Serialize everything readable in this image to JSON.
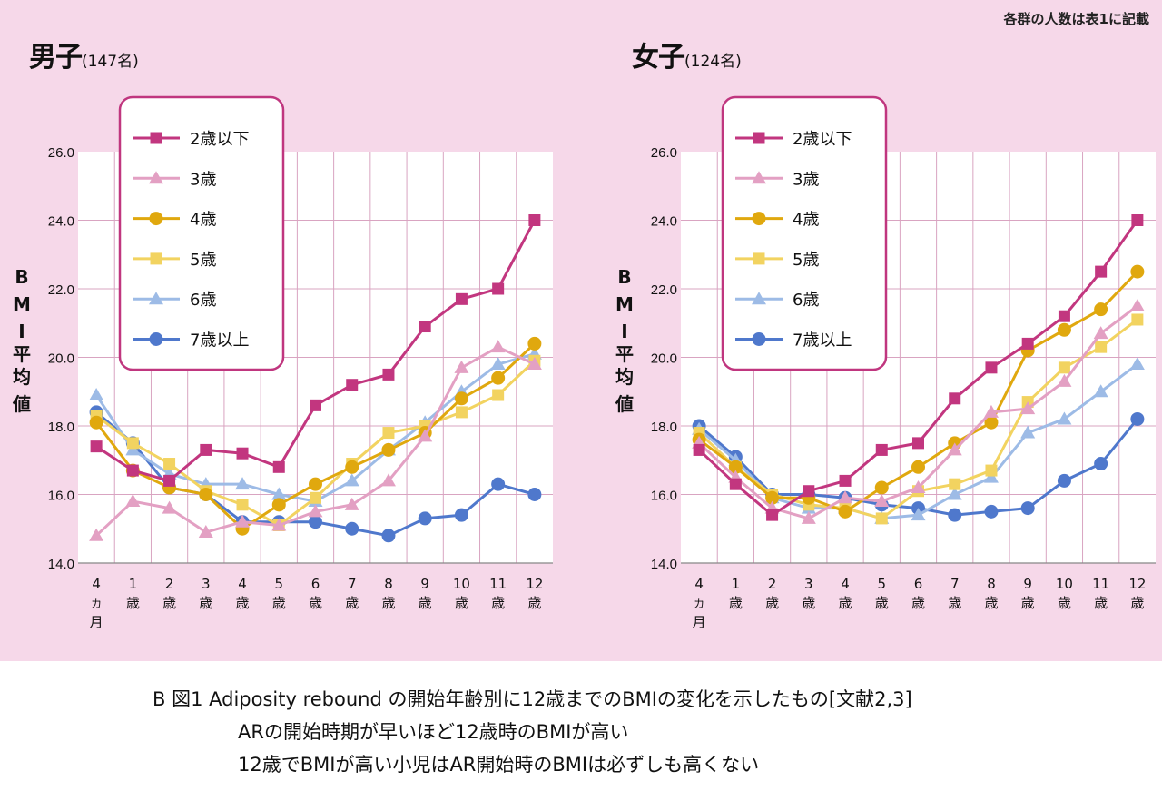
{
  "note": "各群の人数は表1に記載",
  "colors": {
    "le2": "#c2367f",
    "y3": "#e3a0c3",
    "y4": "#e0a80e",
    "y5": "#f2d360",
    "y6": "#9dbbe6",
    "ge7": "#4f78cc",
    "legend_border": "#c0367f",
    "grid": "#d9a4c1",
    "plot_bg": "#ffffff"
  },
  "chart_data": [
    {
      "type": "line",
      "title": "男子",
      "subtitle": "(147名)",
      "ylabel": "BMI平均値",
      "ylim": [
        14.0,
        26.0
      ],
      "yticks": [
        "14.0",
        "16.0",
        "18.0",
        "20.0",
        "22.0",
        "24.0",
        "26.0"
      ],
      "categories": [
        "4カ月",
        "1歳",
        "2歳",
        "3歳",
        "4歳",
        "5歳",
        "6歳",
        "7歳",
        "8歳",
        "9歳",
        "10歳",
        "11歳",
        "12歳"
      ],
      "series": [
        {
          "name": "2歳以下",
          "key": "le2",
          "marker": "square",
          "values": [
            17.4,
            16.7,
            16.4,
            17.3,
            17.2,
            16.8,
            18.6,
            19.2,
            19.5,
            20.9,
            21.7,
            22.0,
            24.0
          ]
        },
        {
          "name": "3歳",
          "key": "y3",
          "marker": "triangle",
          "values": [
            14.8,
            15.8,
            15.6,
            14.9,
            15.2,
            15.1,
            15.5,
            15.7,
            16.4,
            17.7,
            19.7,
            20.3,
            19.8
          ]
        },
        {
          "name": "4歳",
          "key": "y4",
          "marker": "circle",
          "values": [
            18.1,
            16.7,
            16.2,
            16.0,
            15.0,
            15.7,
            16.3,
            16.8,
            17.3,
            17.8,
            18.8,
            19.4,
            20.4
          ]
        },
        {
          "name": "5歳",
          "key": "y5",
          "marker": "square",
          "values": [
            18.3,
            17.5,
            16.9,
            16.1,
            15.7,
            15.1,
            15.9,
            16.9,
            17.8,
            18.0,
            18.4,
            18.9,
            19.9
          ]
        },
        {
          "name": "6歳",
          "key": "y6",
          "marker": "triangle",
          "values": [
            18.9,
            17.3,
            16.6,
            16.3,
            16.3,
            16.0,
            15.8,
            16.4,
            17.3,
            18.1,
            19.0,
            19.8,
            20.1
          ]
        },
        {
          "name": "7歳以上",
          "key": "ge7",
          "marker": "circle",
          "values": [
            18.4,
            17.5,
            16.2,
            16.0,
            15.2,
            15.2,
            15.2,
            15.0,
            14.8,
            15.3,
            15.4,
            16.3,
            16.0
          ]
        }
      ]
    },
    {
      "type": "line",
      "title": "女子",
      "subtitle": "(124名)",
      "ylabel": "BMI平均値",
      "ylim": [
        14.0,
        26.0
      ],
      "yticks": [
        "14.0",
        "16.0",
        "18.0",
        "20.0",
        "22.0",
        "24.0",
        "26.0"
      ],
      "categories": [
        "4カ月",
        "1歳",
        "2歳",
        "3歳",
        "4歳",
        "5歳",
        "6歳",
        "7歳",
        "8歳",
        "9歳",
        "10歳",
        "11歳",
        "12歳"
      ],
      "series": [
        {
          "name": "2歳以下",
          "key": "le2",
          "marker": "square",
          "values": [
            17.3,
            16.3,
            15.4,
            16.1,
            16.4,
            17.3,
            17.5,
            18.8,
            19.7,
            20.4,
            21.2,
            22.5,
            24.0
          ]
        },
        {
          "name": "3歳",
          "key": "y3",
          "marker": "triangle",
          "values": [
            17.5,
            16.5,
            15.6,
            15.3,
            15.9,
            15.8,
            16.2,
            17.3,
            18.4,
            18.5,
            19.3,
            20.7,
            21.5
          ]
        },
        {
          "name": "4歳",
          "key": "y4",
          "marker": "circle",
          "values": [
            17.6,
            16.8,
            15.9,
            15.9,
            15.5,
            16.2,
            16.8,
            17.5,
            18.1,
            20.2,
            20.8,
            21.4,
            22.5
          ]
        },
        {
          "name": "5歳",
          "key": "y5",
          "marker": "square",
          "values": [
            17.8,
            16.8,
            16.0,
            15.7,
            15.6,
            15.3,
            16.1,
            16.3,
            16.7,
            18.7,
            19.7,
            20.3,
            21.1
          ]
        },
        {
          "name": "6歳",
          "key": "y6",
          "marker": "triangle",
          "values": [
            17.9,
            17.0,
            15.9,
            15.6,
            15.6,
            15.3,
            15.4,
            16.0,
            16.5,
            17.8,
            18.2,
            19.0,
            19.8
          ]
        },
        {
          "name": "7歳以上",
          "key": "ge7",
          "marker": "circle",
          "values": [
            18.0,
            17.1,
            16.0,
            16.0,
            15.9,
            15.7,
            15.6,
            15.4,
            15.5,
            15.6,
            16.4,
            16.9,
            18.2
          ]
        }
      ]
    }
  ],
  "caption": {
    "line1": "B 図1 Adiposity rebound の開始年齢別に12歳までのBMIの変化を示したもの[文献2,3]",
    "line2": "ARの開始時期が早いほど12歳時のBMIが高い",
    "line3": "12歳でBMIが高い小児はAR開始時のBMIは必ずしも高くない"
  }
}
